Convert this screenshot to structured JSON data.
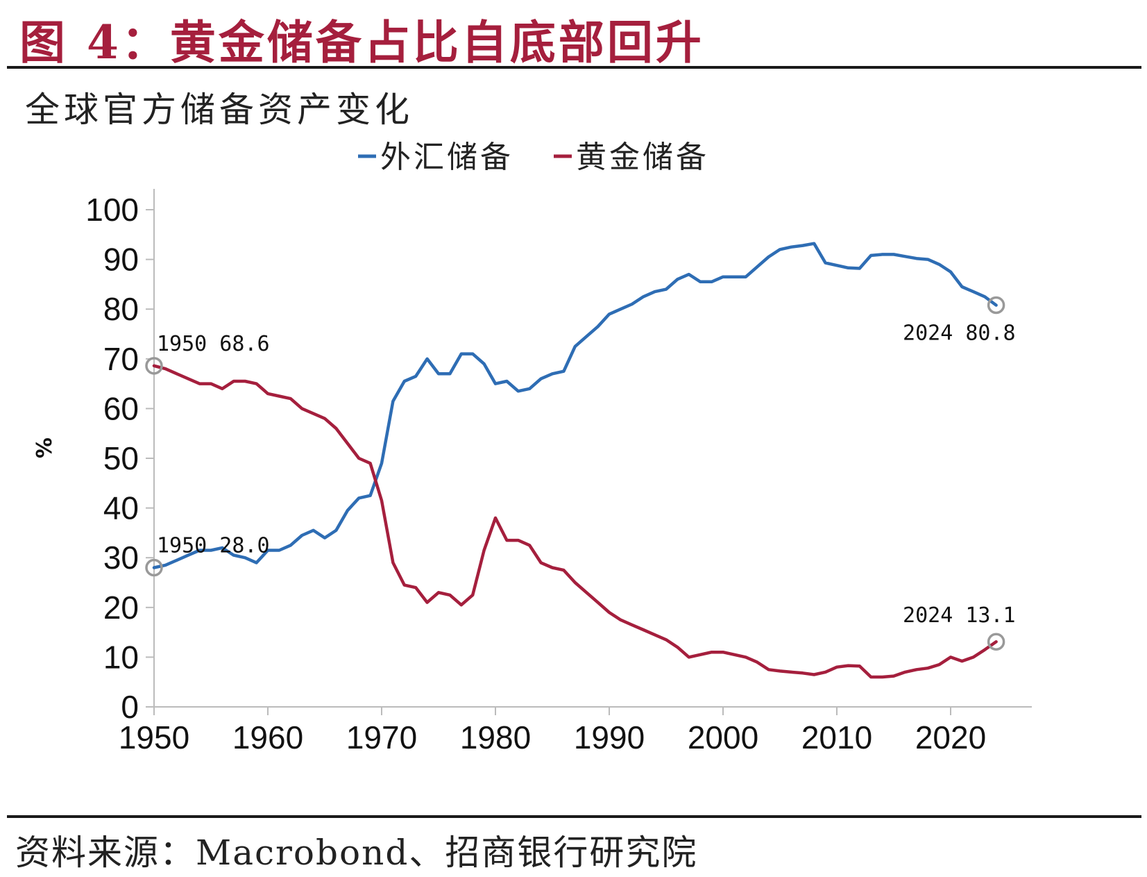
{
  "header": {
    "figure_title": "图 4：黄金储备占比自底部回升"
  },
  "source": "资料来源：Macrobond、招商银行研究院",
  "colors": {
    "title": "#A51F3D",
    "fx": "#2E6DB4",
    "gold": "#A51F3D",
    "marker": "#999999"
  },
  "chart_data": {
    "type": "line",
    "title": "全球官方储备资产变化",
    "xlabel": "",
    "ylabel": "%",
    "xlim": [
      1950,
      2027
    ],
    "ylim": [
      0,
      100
    ],
    "x_ticks": [
      "1950",
      "1960",
      "1970",
      "1980",
      "1990",
      "2000",
      "2010",
      "2020"
    ],
    "y_ticks": [
      "0",
      "10",
      "20",
      "30",
      "40",
      "50",
      "60",
      "70",
      "80",
      "90",
      "100"
    ],
    "legend": {
      "position": "top-center",
      "entries": [
        "外汇储备",
        "黄金储备"
      ]
    },
    "series": [
      {
        "name": "外汇储备",
        "color": "#2E6DB4",
        "points": [
          [
            1950,
            28.0
          ],
          [
            1951,
            28.5
          ],
          [
            1952,
            29.5
          ],
          [
            1953,
            30.5
          ],
          [
            1954,
            31.5
          ],
          [
            1955,
            31.5
          ],
          [
            1956,
            32.0
          ],
          [
            1957,
            30.5
          ],
          [
            1958,
            30.0
          ],
          [
            1959,
            29.0
          ],
          [
            1960,
            31.5
          ],
          [
            1961,
            31.5
          ],
          [
            1962,
            32.5
          ],
          [
            1963,
            34.5
          ],
          [
            1964,
            35.5
          ],
          [
            1965,
            34.0
          ],
          [
            1966,
            35.5
          ],
          [
            1967,
            39.5
          ],
          [
            1968,
            42.0
          ],
          [
            1969,
            42.5
          ],
          [
            1970,
            49.0
          ],
          [
            1971,
            61.5
          ],
          [
            1972,
            65.5
          ],
          [
            1973,
            66.5
          ],
          [
            1974,
            70.0
          ],
          [
            1975,
            67.0
          ],
          [
            1976,
            67.0
          ],
          [
            1977,
            71.0
          ],
          [
            1978,
            71.0
          ],
          [
            1979,
            69.0
          ],
          [
            1980,
            65.0
          ],
          [
            1981,
            65.5
          ],
          [
            1982,
            63.5
          ],
          [
            1983,
            64.0
          ],
          [
            1984,
            66.0
          ],
          [
            1985,
            67.0
          ],
          [
            1986,
            67.5
          ],
          [
            1987,
            72.5
          ],
          [
            1988,
            74.5
          ],
          [
            1989,
            76.5
          ],
          [
            1990,
            79.0
          ],
          [
            1991,
            80.0
          ],
          [
            1992,
            81.0
          ],
          [
            1993,
            82.5
          ],
          [
            1994,
            83.5
          ],
          [
            1995,
            84.0
          ],
          [
            1996,
            86.0
          ],
          [
            1997,
            87.0
          ],
          [
            1998,
            85.5
          ],
          [
            1999,
            85.5
          ],
          [
            2000,
            86.5
          ],
          [
            2001,
            86.5
          ],
          [
            2002,
            86.5
          ],
          [
            2003,
            88.5
          ],
          [
            2004,
            90.5
          ],
          [
            2005,
            92.0
          ],
          [
            2006,
            92.5
          ],
          [
            2007,
            92.8
          ],
          [
            2008,
            93.2
          ],
          [
            2009,
            89.3
          ],
          [
            2010,
            88.8
          ],
          [
            2011,
            88.3
          ],
          [
            2012,
            88.2
          ],
          [
            2013,
            90.8
          ],
          [
            2014,
            91.0
          ],
          [
            2015,
            91.0
          ],
          [
            2016,
            90.6
          ],
          [
            2017,
            90.2
          ],
          [
            2018,
            90.0
          ],
          [
            2019,
            89.0
          ],
          [
            2020,
            87.5
          ],
          [
            2021,
            84.5
          ],
          [
            2022,
            83.5
          ],
          [
            2023,
            82.5
          ],
          [
            2024,
            80.8
          ]
        ]
      },
      {
        "name": "黄金储备",
        "color": "#A51F3D",
        "points": [
          [
            1950,
            68.6
          ],
          [
            1951,
            68.0
          ],
          [
            1952,
            67.0
          ],
          [
            1953,
            66.0
          ],
          [
            1954,
            65.0
          ],
          [
            1955,
            65.0
          ],
          [
            1956,
            64.0
          ],
          [
            1957,
            65.5
          ],
          [
            1958,
            65.5
          ],
          [
            1959,
            65.0
          ],
          [
            1960,
            63.0
          ],
          [
            1961,
            62.5
          ],
          [
            1962,
            62.0
          ],
          [
            1963,
            60.0
          ],
          [
            1964,
            59.0
          ],
          [
            1965,
            58.0
          ],
          [
            1966,
            56.0
          ],
          [
            1967,
            53.0
          ],
          [
            1968,
            50.0
          ],
          [
            1969,
            49.0
          ],
          [
            1970,
            41.5
          ],
          [
            1971,
            29.0
          ],
          [
            1972,
            24.5
          ],
          [
            1973,
            24.0
          ],
          [
            1974,
            21.0
          ],
          [
            1975,
            23.0
          ],
          [
            1976,
            22.5
          ],
          [
            1977,
            20.5
          ],
          [
            1978,
            22.5
          ],
          [
            1979,
            31.5
          ],
          [
            1980,
            38.0
          ],
          [
            1981,
            33.5
          ],
          [
            1982,
            33.5
          ],
          [
            1983,
            32.5
          ],
          [
            1984,
            29.0
          ],
          [
            1985,
            28.0
          ],
          [
            1986,
            27.5
          ],
          [
            1987,
            25.0
          ],
          [
            1988,
            23.0
          ],
          [
            1989,
            21.0
          ],
          [
            1990,
            19.0
          ],
          [
            1991,
            17.5
          ],
          [
            1992,
            16.5
          ],
          [
            1993,
            15.5
          ],
          [
            1994,
            14.5
          ],
          [
            1995,
            13.5
          ],
          [
            1996,
            12.0
          ],
          [
            1997,
            10.0
          ],
          [
            1998,
            10.5
          ],
          [
            1999,
            11.0
          ],
          [
            2000,
            11.0
          ],
          [
            2001,
            10.5
          ],
          [
            2002,
            10.0
          ],
          [
            2003,
            9.0
          ],
          [
            2004,
            7.5
          ],
          [
            2005,
            7.2
          ],
          [
            2006,
            7.0
          ],
          [
            2007,
            6.8
          ],
          [
            2008,
            6.5
          ],
          [
            2009,
            7.0
          ],
          [
            2010,
            8.0
          ],
          [
            2011,
            8.3
          ],
          [
            2012,
            8.2
          ],
          [
            2013,
            6.0
          ],
          [
            2014,
            6.0
          ],
          [
            2015,
            6.2
          ],
          [
            2016,
            7.0
          ],
          [
            2017,
            7.5
          ],
          [
            2018,
            7.8
          ],
          [
            2019,
            8.5
          ],
          [
            2020,
            10.0
          ],
          [
            2021,
            9.2
          ],
          [
            2022,
            10.0
          ],
          [
            2023,
            11.5
          ],
          [
            2024,
            13.1
          ]
        ]
      }
    ],
    "annotations": [
      {
        "series": "黄金储备",
        "x": 1950,
        "y": 68.6,
        "text": "1950  68.6",
        "position": "above-right"
      },
      {
        "series": "外汇储备",
        "x": 1950,
        "y": 28.0,
        "text": "1950  28.0",
        "position": "above-right"
      },
      {
        "series": "外汇储备",
        "x": 2024,
        "y": 80.8,
        "text": "2024  80.8",
        "position": "below-left"
      },
      {
        "series": "黄金储备",
        "x": 2024,
        "y": 13.1,
        "text": "2024  13.1",
        "position": "above-left"
      }
    ]
  }
}
